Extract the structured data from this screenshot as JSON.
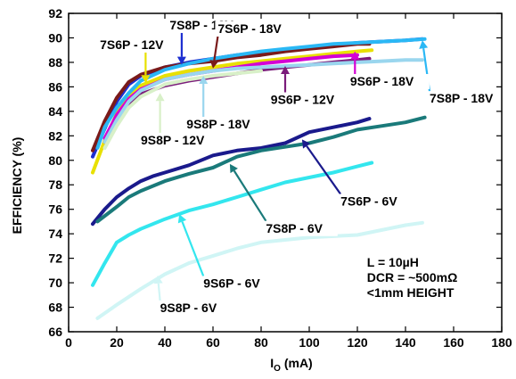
{
  "chart_data": {
    "type": "line",
    "title": "",
    "xlabel": "I",
    "xlabel_sub": "O",
    "xlabel_unit": " (mA)",
    "ylabel": "EFFICIENCY (%)",
    "xlim": [
      0,
      180
    ],
    "ylim": [
      66,
      92
    ],
    "xticks": [
      0,
      20,
      40,
      60,
      80,
      100,
      120,
      140,
      160,
      180
    ],
    "yticks": [
      66,
      68,
      70,
      72,
      74,
      76,
      78,
      80,
      82,
      84,
      86,
      88,
      90,
      92
    ],
    "grid": false,
    "legend": "inline-labels",
    "annotation": [
      "L = 10µH",
      "DCR = ~500mΩ",
      "<1mm HEIGHT"
    ],
    "series": [
      {
        "name": "7S8P - 12V",
        "color": "#1d2fd0",
        "x": [
          10,
          15,
          20,
          25,
          30,
          40,
          50,
          60,
          70,
          80,
          90,
          100,
          110,
          120,
          130,
          140,
          147
        ],
        "y": [
          80.3,
          82.6,
          84.8,
          86.2,
          86.9,
          87.6,
          88.0,
          88.3,
          88.6,
          88.8,
          89.0,
          89.2,
          89.4,
          89.6,
          89.7,
          89.8,
          89.9
        ]
      },
      {
        "name": "7S6P - 18V",
        "color": "#7a1a1a",
        "x": [
          10,
          15,
          20,
          25,
          30,
          40,
          50,
          60,
          70,
          80,
          90,
          100,
          110,
          120,
          125
        ],
        "y": [
          80.8,
          83.2,
          85.1,
          86.4,
          87.0,
          87.6,
          87.9,
          88.1,
          88.4,
          88.6,
          88.9,
          89.1,
          89.3,
          89.5,
          89.5
        ]
      },
      {
        "name": "7S6P - 12V",
        "color": "#e8e000",
        "x": [
          10,
          15,
          20,
          25,
          30,
          40,
          50,
          60,
          70,
          80,
          90,
          100,
          110,
          120,
          126
        ],
        "y": [
          79.0,
          81.6,
          83.8,
          85.3,
          86.1,
          86.9,
          87.3,
          87.6,
          87.9,
          88.1,
          88.3,
          88.5,
          88.7,
          88.9,
          89.0
        ]
      },
      {
        "name": "7S8P - 18V",
        "color": "#2ab8f5",
        "x": [
          12,
          15,
          20,
          25,
          30,
          40,
          50,
          60,
          70,
          80,
          90,
          100,
          110,
          120,
          130,
          140,
          148
        ],
        "y": [
          81.0,
          82.7,
          84.3,
          85.5,
          86.5,
          87.4,
          87.9,
          88.3,
          88.6,
          88.9,
          89.1,
          89.3,
          89.5,
          89.6,
          89.7,
          89.8,
          89.9
        ]
      },
      {
        "name": "9S6P - 18V",
        "color": "#d400d4",
        "x": [
          15,
          20,
          25,
          30,
          40,
          50,
          60,
          70,
          80,
          90,
          100,
          110,
          120
        ],
        "y": [
          81.8,
          83.7,
          85.0,
          85.8,
          86.6,
          87.0,
          87.3,
          87.6,
          87.9,
          88.1,
          88.3,
          88.5,
          88.6
        ]
      },
      {
        "name": "9S6P - 12V",
        "color": "#7b1c7b",
        "x": [
          15,
          20,
          25,
          30,
          40,
          50,
          60,
          70,
          80,
          90,
          100,
          110,
          120,
          125
        ],
        "y": [
          81.5,
          83.3,
          84.6,
          85.4,
          86.1,
          86.5,
          86.8,
          87.1,
          87.4,
          87.6,
          87.8,
          88.0,
          88.2,
          88.3
        ]
      },
      {
        "name": "9S8P - 18V",
        "color": "#9ad6ee",
        "x": [
          15,
          20,
          25,
          30,
          40,
          50,
          60,
          70,
          80,
          90,
          100,
          110,
          120,
          130,
          140,
          147
        ],
        "y": [
          81.5,
          83.3,
          84.8,
          85.7,
          86.6,
          87.0,
          87.3,
          87.5,
          87.6,
          87.7,
          87.8,
          87.9,
          88.0,
          88.1,
          88.2,
          88.2
        ]
      },
      {
        "name": "9S8P - 12V",
        "color": "#d8f0c8",
        "x": [
          15,
          20,
          25,
          30,
          40,
          50,
          60,
          70,
          80
        ],
        "y": [
          81.0,
          82.8,
          84.3,
          85.2,
          86.2,
          86.6,
          86.9,
          87.1,
          87.3
        ]
      },
      {
        "name": "7S6P - 6V",
        "color": "#1a1a8c",
        "x": [
          10,
          15,
          20,
          25,
          30,
          35,
          40,
          50,
          60,
          70,
          80,
          90,
          100,
          110,
          120,
          125
        ],
        "y": [
          74.8,
          76.0,
          77.0,
          77.7,
          78.3,
          78.7,
          79.0,
          79.6,
          80.4,
          80.8,
          81.0,
          81.4,
          82.3,
          82.7,
          83.1,
          83.4
        ]
      },
      {
        "name": "7S8P - 6V",
        "color": "#1a7a7a",
        "x": [
          12,
          20,
          25,
          30,
          40,
          50,
          60,
          70,
          80,
          90,
          100,
          110,
          120,
          130,
          140,
          148
        ],
        "y": [
          75.0,
          76.2,
          77.0,
          77.5,
          78.3,
          78.9,
          79.4,
          80.3,
          80.8,
          81.1,
          81.4,
          81.9,
          82.5,
          82.8,
          83.1,
          83.5
        ]
      },
      {
        "name": "9S6P - 6V",
        "color": "#33e6ee",
        "x": [
          10,
          15,
          20,
          25,
          30,
          40,
          50,
          60,
          70,
          80,
          90,
          100,
          110,
          120,
          126
        ],
        "y": [
          69.8,
          71.6,
          73.3,
          73.9,
          74.4,
          75.2,
          75.9,
          76.4,
          77.0,
          77.6,
          78.2,
          78.6,
          79.0,
          79.5,
          79.8
        ]
      },
      {
        "name": "9S8P - 6V",
        "color": "#d0f5f5",
        "x": [
          12,
          20,
          30,
          40,
          50,
          60,
          70,
          80,
          90,
          100,
          110,
          120,
          130,
          140,
          147
        ],
        "y": [
          67.1,
          68.2,
          69.5,
          70.7,
          71.6,
          72.2,
          72.8,
          73.3,
          73.5,
          73.7,
          73.8,
          73.9,
          74.3,
          74.7,
          74.9
        ]
      }
    ],
    "labels": [
      {
        "series": "7S8P - 12V",
        "text": "7S8P - 12V",
        "x": 42,
        "y": 90.7,
        "arrow_to": [
          47,
          87.8
        ]
      },
      {
        "series": "7S6P - 18V",
        "text": "7S6P - 18V",
        "x": 62,
        "y": 90.4,
        "arrow_to": [
          60,
          87.5
        ]
      },
      {
        "series": "7S6P - 12V",
        "text": "7S6P - 12V",
        "x": 13,
        "y": 89.1,
        "arrow_to": [
          32,
          86.3
        ]
      },
      {
        "series": "9S6P - 18V",
        "text": "9S6P - 18V",
        "x": 117,
        "y": 86.1,
        "arrow_to": [
          119,
          88.9
        ]
      },
      {
        "series": "9S6P - 12V",
        "text": "9S6P - 12V",
        "x": 84,
        "y": 84.6,
        "arrow_to": [
          90,
          87.7
        ]
      },
      {
        "series": "7S8P - 18V",
        "text": "7S8P - 18V",
        "x": 150,
        "y": 84.7,
        "arrow_to": [
          147,
          89.8
        ]
      },
      {
        "series": "9S8P - 18V",
        "text": "9S8P - 18V",
        "x": 49,
        "y": 82.6,
        "arrow_to": [
          56,
          86.9
        ]
      },
      {
        "series": "9S8P - 12V",
        "text": "9S8P - 12V",
        "x": 30,
        "y": 81.3,
        "arrow_to": [
          38,
          85.5
        ]
      },
      {
        "series": "7S6P - 6V",
        "text": "7S6P - 6V",
        "x": 113,
        "y": 76.3,
        "arrow_to": [
          97,
          81.7
        ]
      },
      {
        "series": "7S8P - 6V",
        "text": "7S8P - 6V",
        "x": 82,
        "y": 74.1,
        "arrow_to": [
          67,
          79.7
        ]
      },
      {
        "series": "9S6P - 6V",
        "text": "9S6P - 6V",
        "x": 56,
        "y": 69.6,
        "arrow_to": [
          46,
          75.6
        ]
      },
      {
        "series": "9S8P - 6V",
        "text": "9S8P - 6V",
        "x": 38,
        "y": 67.6,
        "arrow_to": [
          37,
          70.6
        ]
      }
    ]
  }
}
